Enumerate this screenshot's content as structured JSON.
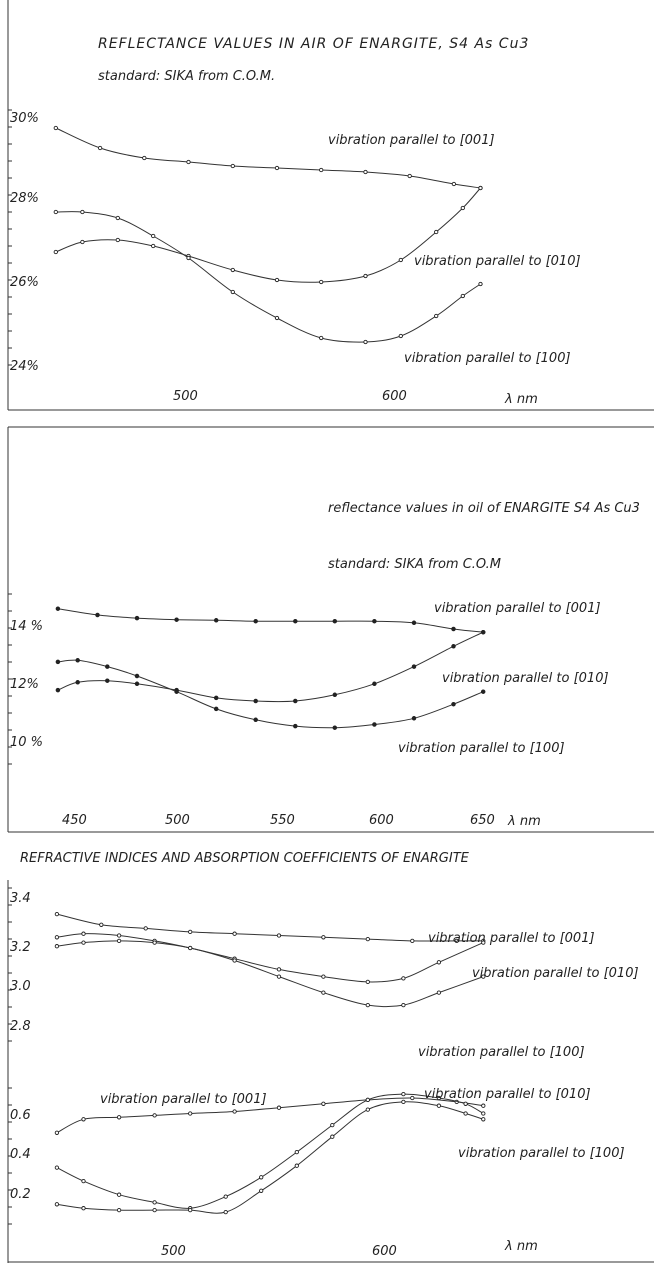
{
  "panels": [
    {
      "title": "REFLECTANCE VALUES IN AIR OF ENARGITE, S4 As Cu3",
      "subtitle": "standard: SIKA from C.O.M.",
      "x_unit": "λ nm",
      "chart_data": {
        "type": "line",
        "title": "REFLECTANCE VALUES IN AIR OF ENARGITE, S4 As Cu3",
        "xlabel": "λ nm",
        "ylabel": "",
        "xlim": [
          420,
          680
        ],
        "ylim": [
          24,
          30
        ],
        "x_ticks": [
          "500",
          "600"
        ],
        "y_ticks": [
          "30%",
          "28%",
          "26%",
          "24%"
        ],
        "series": [
          {
            "name": "vibration parallel to [001]",
            "points": [
              [
                425,
                29.8
              ],
              [
                450,
                29.3
              ],
              [
                475,
                29.05
              ],
              [
                500,
                28.95
              ],
              [
                525,
                28.85
              ],
              [
                550,
                28.8
              ],
              [
                575,
                28.75
              ],
              [
                600,
                28.7
              ],
              [
                625,
                28.6
              ],
              [
                650,
                28.4
              ],
              [
                665,
                28.3
              ]
            ]
          },
          {
            "name": "vibration parallel to [010]",
            "points": [
              [
                425,
                26.7
              ],
              [
                440,
                26.95
              ],
              [
                460,
                27.0
              ],
              [
                480,
                26.85
              ],
              [
                500,
                26.6
              ],
              [
                525,
                26.25
              ],
              [
                550,
                26.0
              ],
              [
                575,
                25.95
              ],
              [
                600,
                26.1
              ],
              [
                620,
                26.5
              ],
              [
                640,
                27.2
              ],
              [
                655,
                27.8
              ],
              [
                665,
                28.3
              ]
            ]
          },
          {
            "name": "vibration parallel to [100]",
            "points": [
              [
                425,
                27.7
              ],
              [
                440,
                27.7
              ],
              [
                460,
                27.55
              ],
              [
                480,
                27.1
              ],
              [
                500,
                26.55
              ],
              [
                525,
                25.7
              ],
              [
                550,
                25.05
              ],
              [
                575,
                24.55
              ],
              [
                600,
                24.45
              ],
              [
                620,
                24.6
              ],
              [
                640,
                25.1
              ],
              [
                655,
                25.6
              ],
              [
                665,
                25.9
              ]
            ]
          }
        ]
      }
    },
    {
      "title": "reflectance values in oil of ENARGITE S4 As Cu3",
      "subtitle": "standard: SIKA from C.O.M",
      "x_unit": "λ nm",
      "chart_data": {
        "type": "line",
        "title": "reflectance values in oil of ENARGITE S4 As Cu3",
        "xlabel": "λ nm",
        "ylabel": "",
        "xlim": [
          435,
          665
        ],
        "ylim": [
          10,
          14.6
        ],
        "x_ticks": [
          "450",
          "500",
          "550",
          "600",
          "650"
        ],
        "y_ticks": [
          "14 %",
          "12%",
          "10 %"
        ],
        "series": [
          {
            "name": "vibration parallel to [001]",
            "points": [
              [
                440,
                14.45
              ],
              [
                460,
                14.25
              ],
              [
                480,
                14.15
              ],
              [
                500,
                14.1
              ],
              [
                520,
                14.08
              ],
              [
                540,
                14.05
              ],
              [
                560,
                14.05
              ],
              [
                580,
                14.05
              ],
              [
                600,
                14.05
              ],
              [
                620,
                14.0
              ],
              [
                640,
                13.8
              ],
              [
                655,
                13.7
              ]
            ]
          },
          {
            "name": "vibration parallel to [010]",
            "points": [
              [
                440,
                11.85
              ],
              [
                450,
                12.1
              ],
              [
                465,
                12.15
              ],
              [
                480,
                12.05
              ],
              [
                500,
                11.85
              ],
              [
                520,
                11.6
              ],
              [
                540,
                11.5
              ],
              [
                560,
                11.5
              ],
              [
                580,
                11.7
              ],
              [
                600,
                12.05
              ],
              [
                620,
                12.6
              ],
              [
                640,
                13.25
              ],
              [
                655,
                13.7
              ]
            ]
          },
          {
            "name": "vibration parallel to [100]",
            "points": [
              [
                440,
                12.75
              ],
              [
                450,
                12.8
              ],
              [
                465,
                12.6
              ],
              [
                480,
                12.3
              ],
              [
                500,
                11.8
              ],
              [
                520,
                11.25
              ],
              [
                540,
                10.9
              ],
              [
                560,
                10.7
              ],
              [
                580,
                10.65
              ],
              [
                600,
                10.75
              ],
              [
                620,
                10.95
              ],
              [
                640,
                11.4
              ],
              [
                655,
                11.8
              ]
            ]
          }
        ]
      }
    },
    {
      "title": "REFRACTIVE INDICES AND ABSORPTION COEFFICIENTS OF ENARGITE",
      "x_unit": "λ nm",
      "chart_data": [
        {
          "type": "line",
          "title": "REFRACTIVE INDICES AND ABSORPTION COEFFICIENTS OF ENARGITE",
          "xlabel": "λ nm",
          "ylabel": "",
          "xlim": [
            420,
            680
          ],
          "ylim": [
            2.7,
            3.4
          ],
          "y_ticks": [
            "3.4",
            "3.2",
            "3.0",
            "2.8"
          ],
          "series": [
            {
              "name": "vibration parallel to [001]",
              "points": [
                [
                  425,
                  3.31
                ],
                [
                  450,
                  3.25
                ],
                [
                  475,
                  3.23
                ],
                [
                  500,
                  3.21
                ],
                [
                  525,
                  3.2
                ],
                [
                  550,
                  3.19
                ],
                [
                  575,
                  3.18
                ],
                [
                  600,
                  3.17
                ],
                [
                  625,
                  3.16
                ],
                [
                  650,
                  3.16
                ],
                [
                  665,
                  3.16
                ]
              ]
            },
            {
              "name": "vibration parallel to [010]",
              "points": [
                [
                  425,
                  3.18
                ],
                [
                  440,
                  3.2
                ],
                [
                  460,
                  3.19
                ],
                [
                  480,
                  3.16
                ],
                [
                  500,
                  3.12
                ],
                [
                  525,
                  3.06
                ],
                [
                  550,
                  3.0
                ],
                [
                  575,
                  2.96
                ],
                [
                  600,
                  2.93
                ],
                [
                  620,
                  2.95
                ],
                [
                  640,
                  3.04
                ],
                [
                  665,
                  3.15
                ]
              ]
            },
            {
              "name": "vibration parallel to [100]",
              "points": [
                [
                  425,
                  3.13
                ],
                [
                  440,
                  3.15
                ],
                [
                  460,
                  3.16
                ],
                [
                  480,
                  3.15
                ],
                [
                  500,
                  3.12
                ],
                [
                  525,
                  3.05
                ],
                [
                  550,
                  2.96
                ],
                [
                  575,
                  2.87
                ],
                [
                  600,
                  2.8
                ],
                [
                  620,
                  2.8
                ],
                [
                  640,
                  2.87
                ],
                [
                  665,
                  2.96
                ]
              ]
            }
          ]
        },
        {
          "type": "line",
          "xlabel": "λ nm",
          "xlim": [
            420,
            680
          ],
          "ylim": [
            0.1,
            0.7
          ],
          "x_ticks": [
            "500",
            "600"
          ],
          "y_ticks": [
            "0.6",
            "0.4",
            "0.2"
          ],
          "series": [
            {
              "name": "vibration parallel to [001]",
              "points": [
                [
                  425,
                  0.52
                ],
                [
                  440,
                  0.59
                ],
                [
                  460,
                  0.6
                ],
                [
                  480,
                  0.61
                ],
                [
                  500,
                  0.62
                ],
                [
                  525,
                  0.63
                ],
                [
                  550,
                  0.65
                ],
                [
                  575,
                  0.67
                ],
                [
                  600,
                  0.69
                ],
                [
                  625,
                  0.7
                ],
                [
                  650,
                  0.68
                ],
                [
                  665,
                  0.66
                ]
              ]
            },
            {
              "name": "vibration parallel to [010]",
              "points": [
                [
                  425,
                  0.34
                ],
                [
                  440,
                  0.27
                ],
                [
                  460,
                  0.2
                ],
                [
                  480,
                  0.16
                ],
                [
                  500,
                  0.13
                ],
                [
                  520,
                  0.19
                ],
                [
                  540,
                  0.29
                ],
                [
                  560,
                  0.42
                ],
                [
                  580,
                  0.56
                ],
                [
                  600,
                  0.69
                ],
                [
                  620,
                  0.72
                ],
                [
                  640,
                  0.7
                ],
                [
                  655,
                  0.67
                ],
                [
                  665,
                  0.62
                ]
              ]
            },
            {
              "name": "vibration parallel to [100]",
              "points": [
                [
                  425,
                  0.15
                ],
                [
                  440,
                  0.13
                ],
                [
                  460,
                  0.12
                ],
                [
                  480,
                  0.12
                ],
                [
                  500,
                  0.12
                ],
                [
                  520,
                  0.11
                ],
                [
                  540,
                  0.22
                ],
                [
                  560,
                  0.35
                ],
                [
                  580,
                  0.5
                ],
                [
                  600,
                  0.64
                ],
                [
                  620,
                  0.68
                ],
                [
                  640,
                  0.66
                ],
                [
                  655,
                  0.62
                ],
                [
                  665,
                  0.59
                ]
              ]
            }
          ]
        }
      ]
    }
  ]
}
